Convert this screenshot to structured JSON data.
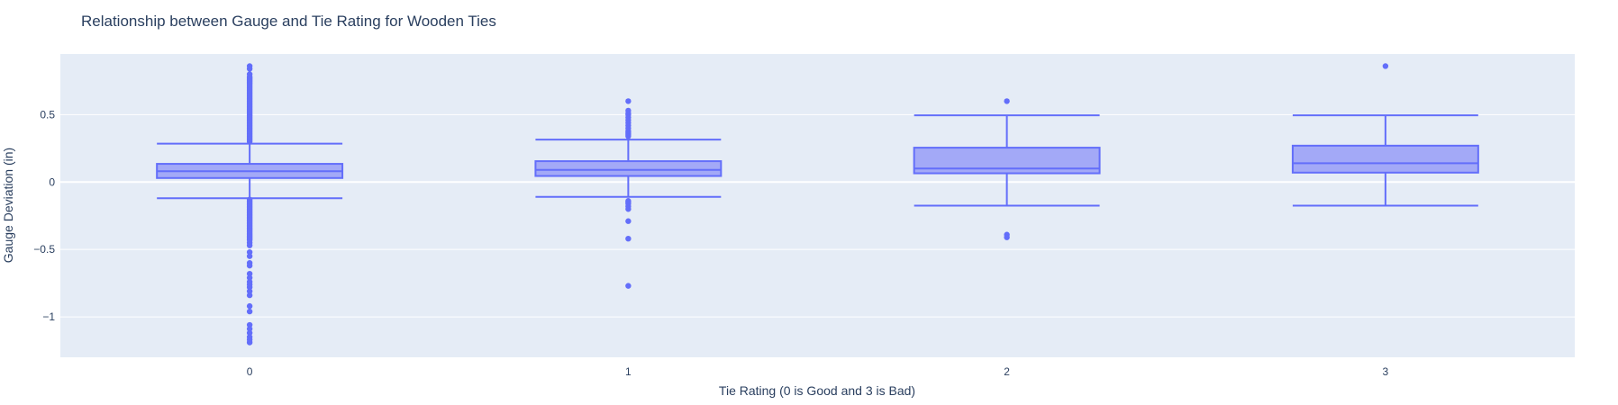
{
  "chart_data": {
    "type": "box",
    "title": "Relationship between Gauge and Tie Rating for Wooden Ties",
    "xlabel": "Tie Rating (0 is Good and 3 is Bad)",
    "ylabel": "Gauge Deviation (in)",
    "ylim": [
      -1.3,
      0.95
    ],
    "yticks": [
      {
        "value": -1,
        "label": "−1"
      },
      {
        "value": -0.5,
        "label": "−0.5"
      },
      {
        "value": 0,
        "label": "0"
      },
      {
        "value": 0.5,
        "label": "0.5"
      }
    ],
    "grid": true,
    "colors": {
      "plot_bg": "#e5ecf6",
      "grid": "#ffffff",
      "box_line": "#636efa",
      "box_fill": "#a3a9f7",
      "text": "#2a3f5f"
    },
    "categories": [
      "0",
      "1",
      "2",
      "3"
    ],
    "boxes": [
      {
        "category": "0",
        "min": -0.12,
        "q1": 0.03,
        "median": 0.08,
        "q3": 0.135,
        "max": 0.285,
        "outliers": [
          0.86,
          0.84,
          0.8,
          0.78,
          0.77,
          0.76,
          0.75,
          0.74,
          0.73,
          0.72,
          0.71,
          0.7,
          0.69,
          0.68,
          0.67,
          0.66,
          0.65,
          0.64,
          0.63,
          0.62,
          0.61,
          0.6,
          0.59,
          0.58,
          0.57,
          0.56,
          0.55,
          0.54,
          0.53,
          0.52,
          0.51,
          0.5,
          0.49,
          0.48,
          0.47,
          0.46,
          0.45,
          0.44,
          0.43,
          0.42,
          0.41,
          0.4,
          0.39,
          0.38,
          0.37,
          0.36,
          0.35,
          0.34,
          0.33,
          0.32,
          0.31,
          0.3,
          -0.13,
          -0.14,
          -0.15,
          -0.16,
          -0.17,
          -0.18,
          -0.19,
          -0.2,
          -0.21,
          -0.22,
          -0.23,
          -0.24,
          -0.25,
          -0.26,
          -0.27,
          -0.28,
          -0.29,
          -0.3,
          -0.31,
          -0.32,
          -0.33,
          -0.34,
          -0.35,
          -0.36,
          -0.37,
          -0.38,
          -0.39,
          -0.4,
          -0.41,
          -0.42,
          -0.43,
          -0.45,
          -0.47,
          -0.52,
          -0.55,
          -0.6,
          -0.62,
          -0.68,
          -0.71,
          -0.74,
          -0.76,
          -0.78,
          -0.81,
          -0.84,
          -0.92,
          -0.96,
          -1.06,
          -1.09,
          -1.12,
          -1.15,
          -1.17,
          -1.19
        ]
      },
      {
        "category": "1",
        "min": -0.11,
        "q1": 0.045,
        "median": 0.09,
        "q3": 0.155,
        "max": 0.315,
        "outliers": [
          0.6,
          0.53,
          0.51,
          0.5,
          0.48,
          0.46,
          0.44,
          0.42,
          0.4,
          0.38,
          0.37,
          0.36,
          0.35,
          0.34,
          -0.14,
          -0.15,
          -0.16,
          -0.18,
          -0.2,
          -0.29,
          -0.42,
          -0.77
        ]
      },
      {
        "category": "2",
        "min": -0.175,
        "q1": 0.065,
        "median": 0.1,
        "q3": 0.255,
        "max": 0.495,
        "outliers": [
          0.6,
          -0.39,
          -0.41
        ]
      },
      {
        "category": "3",
        "min": -0.175,
        "q1": 0.07,
        "median": 0.14,
        "q3": 0.27,
        "max": 0.495,
        "outliers": [
          0.86
        ]
      }
    ]
  }
}
